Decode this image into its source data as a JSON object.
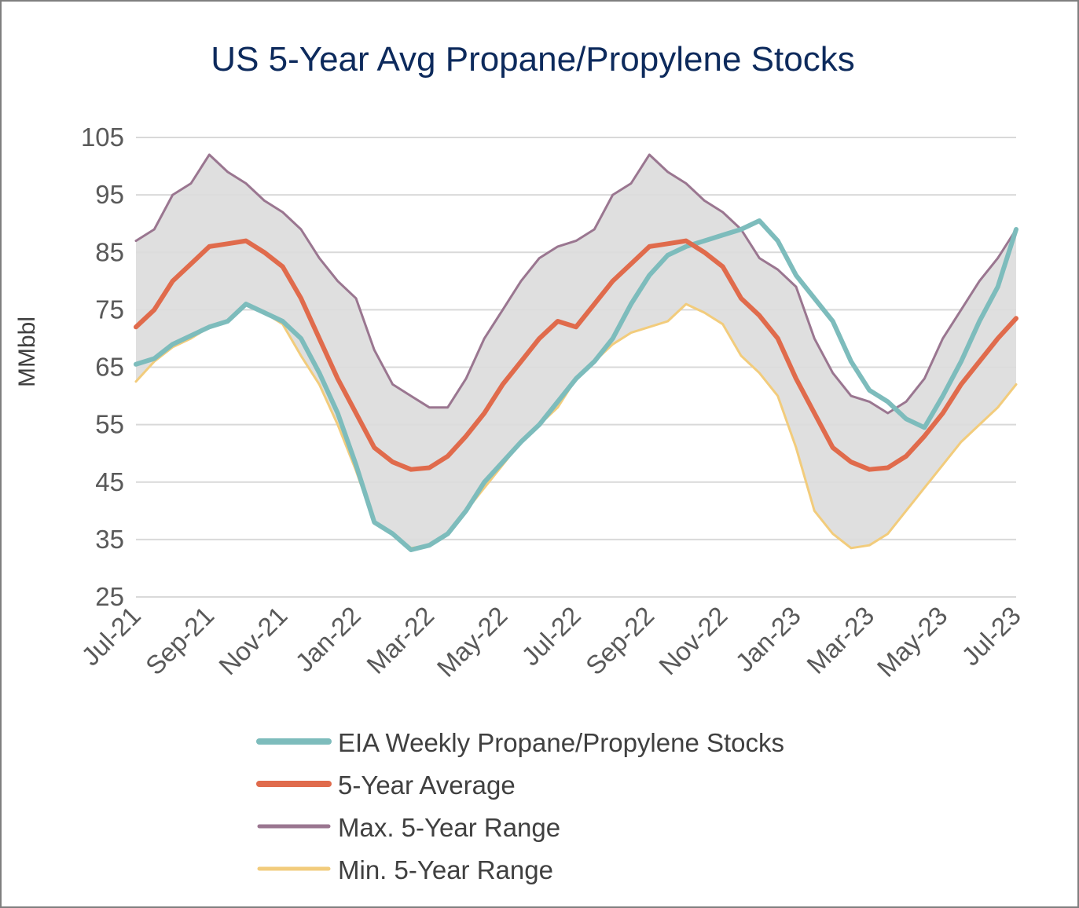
{
  "chart_data": {
    "type": "line",
    "title": "US 5-Year Avg Propane/Propylene Stocks",
    "xlabel": "",
    "ylabel": "MMbbl",
    "ylim": [
      25,
      105
    ],
    "yticks": [
      25,
      35,
      45,
      55,
      65,
      75,
      85,
      95,
      105
    ],
    "xlim": [
      0,
      24
    ],
    "xticks": [
      {
        "label": "Jul-21",
        "month": 0
      },
      {
        "label": "Sep-21",
        "month": 2
      },
      {
        "label": "Nov-21",
        "month": 4
      },
      {
        "label": "Jan-22",
        "month": 6
      },
      {
        "label": "Mar-22",
        "month": 8
      },
      {
        "label": "May-22",
        "month": 10
      },
      {
        "label": "Jul-22",
        "month": 12
      },
      {
        "label": "Sep-22",
        "month": 14
      },
      {
        "label": "Nov-22",
        "month": 16
      },
      {
        "label": "Jan-23",
        "month": 18
      },
      {
        "label": "Mar-23",
        "month": 20
      },
      {
        "label": "May-23",
        "month": 22
      },
      {
        "label": "Jul-23",
        "month": 24
      }
    ],
    "grid": true,
    "legend_position": "bottom",
    "series": [
      {
        "name": "EIA Weekly Propane/Propylene Stocks",
        "color": "#7dbcbc",
        "width": 6,
        "points": [
          [
            0,
            65.5
          ],
          [
            0.5,
            66.5
          ],
          [
            1,
            69
          ],
          [
            1.5,
            70.5
          ],
          [
            2,
            72
          ],
          [
            2.5,
            73
          ],
          [
            3,
            76
          ],
          [
            3.5,
            74.5
          ],
          [
            4,
            73
          ],
          [
            4.5,
            70
          ],
          [
            5,
            64
          ],
          [
            5.5,
            57
          ],
          [
            6,
            48
          ],
          [
            6.5,
            38
          ],
          [
            7,
            36
          ],
          [
            7.5,
            33.2
          ],
          [
            8,
            34
          ],
          [
            8.5,
            36
          ],
          [
            9,
            40
          ],
          [
            9.5,
            45
          ],
          [
            10,
            48.5
          ],
          [
            10.5,
            52
          ],
          [
            11,
            55
          ],
          [
            11.5,
            59
          ],
          [
            12,
            63
          ],
          [
            12.5,
            66
          ],
          [
            13,
            70
          ],
          [
            13.5,
            76
          ],
          [
            14,
            81
          ],
          [
            14.5,
            84.5
          ],
          [
            15,
            86
          ],
          [
            15.5,
            87
          ],
          [
            16,
            88
          ],
          [
            16.5,
            89
          ],
          [
            17,
            90.5
          ],
          [
            17.5,
            87
          ],
          [
            18,
            81
          ],
          [
            18.5,
            77
          ],
          [
            19,
            73
          ],
          [
            19.5,
            66
          ],
          [
            20,
            61
          ],
          [
            20.5,
            59
          ],
          [
            21,
            56
          ],
          [
            21.5,
            54.5
          ],
          [
            22,
            60
          ],
          [
            22.5,
            66
          ],
          [
            23,
            73
          ],
          [
            23.5,
            79
          ],
          [
            24,
            89
          ]
        ]
      },
      {
        "name": "5-Year Average",
        "color": "#e06b4c",
        "width": 6,
        "points": [
          [
            0,
            72
          ],
          [
            0.5,
            75
          ],
          [
            1,
            80
          ],
          [
            1.5,
            83
          ],
          [
            2,
            86
          ],
          [
            2.5,
            86.5
          ],
          [
            3,
            87
          ],
          [
            3.5,
            85
          ],
          [
            4,
            82.5
          ],
          [
            4.5,
            77
          ],
          [
            5,
            70
          ],
          [
            5.5,
            63
          ],
          [
            6,
            57
          ],
          [
            6.5,
            51
          ],
          [
            7,
            48.5
          ],
          [
            7.5,
            47.2
          ],
          [
            8,
            47.5
          ],
          [
            8.5,
            49.5
          ],
          [
            9,
            53
          ],
          [
            9.5,
            57
          ],
          [
            10,
            62
          ],
          [
            10.5,
            66
          ],
          [
            11,
            70
          ],
          [
            11.5,
            73
          ],
          [
            12,
            72
          ],
          [
            12.5,
            76
          ],
          [
            13,
            80
          ],
          [
            13.5,
            83
          ],
          [
            14,
            86
          ],
          [
            14.5,
            86.5
          ],
          [
            15,
            87
          ],
          [
            15.5,
            85
          ],
          [
            16,
            82.5
          ],
          [
            16.5,
            77
          ],
          [
            17,
            74
          ],
          [
            17.5,
            70
          ],
          [
            18,
            63
          ],
          [
            18.5,
            57
          ],
          [
            19,
            51
          ],
          [
            19.5,
            48.5
          ],
          [
            20,
            47.2
          ],
          [
            20.5,
            47.5
          ],
          [
            21,
            49.5
          ],
          [
            21.5,
            53
          ],
          [
            22,
            57
          ],
          [
            22.5,
            62
          ],
          [
            23,
            66
          ],
          [
            23.5,
            70
          ],
          [
            24,
            73.5
          ]
        ]
      },
      {
        "name": "Max. 5-Year Range",
        "color": "#9a7690",
        "width": 3,
        "points": [
          [
            0,
            87
          ],
          [
            0.5,
            89
          ],
          [
            1,
            95
          ],
          [
            1.5,
            97
          ],
          [
            2,
            102
          ],
          [
            2.5,
            99
          ],
          [
            3,
            97
          ],
          [
            3.5,
            94
          ],
          [
            4,
            92
          ],
          [
            4.5,
            89
          ],
          [
            5,
            84
          ],
          [
            5.5,
            80
          ],
          [
            6,
            77
          ],
          [
            6.5,
            68
          ],
          [
            7,
            62
          ],
          [
            7.5,
            60
          ],
          [
            8,
            58
          ],
          [
            8.5,
            58
          ],
          [
            9,
            63
          ],
          [
            9.5,
            70
          ],
          [
            10,
            75
          ],
          [
            10.5,
            80
          ],
          [
            11,
            84
          ],
          [
            11.5,
            86
          ],
          [
            12,
            87
          ],
          [
            12.5,
            89
          ],
          [
            13,
            95
          ],
          [
            13.5,
            97
          ],
          [
            14,
            102
          ],
          [
            14.5,
            99
          ],
          [
            15,
            97
          ],
          [
            15.5,
            94
          ],
          [
            16,
            92
          ],
          [
            16.5,
            89
          ],
          [
            17,
            84
          ],
          [
            17.5,
            82
          ],
          [
            18,
            79
          ],
          [
            18.5,
            70
          ],
          [
            19,
            64
          ],
          [
            19.5,
            60
          ],
          [
            20,
            59
          ],
          [
            20.5,
            57
          ],
          [
            21,
            59
          ],
          [
            21.5,
            63
          ],
          [
            22,
            70
          ],
          [
            22.5,
            75
          ],
          [
            23,
            80
          ],
          [
            23.5,
            84
          ],
          [
            24,
            89
          ]
        ]
      },
      {
        "name": "Min. 5-Year Range",
        "color": "#f2cc7c",
        "width": 3,
        "points": [
          [
            0,
            62.5
          ],
          [
            0.5,
            66
          ],
          [
            1,
            68.5
          ],
          [
            1.5,
            70
          ],
          [
            2,
            72
          ],
          [
            2.5,
            73
          ],
          [
            3,
            76
          ],
          [
            3.5,
            74.5
          ],
          [
            4,
            72.5
          ],
          [
            4.5,
            67
          ],
          [
            5,
            62
          ],
          [
            5.5,
            55
          ],
          [
            6,
            47
          ],
          [
            6.5,
            38
          ],
          [
            7,
            36
          ],
          [
            7.5,
            33.5
          ],
          [
            8,
            34
          ],
          [
            8.5,
            36
          ],
          [
            9,
            40
          ],
          [
            9.5,
            44
          ],
          [
            10,
            48
          ],
          [
            10.5,
            52
          ],
          [
            11,
            55
          ],
          [
            11.5,
            58
          ],
          [
            12,
            63
          ],
          [
            12.5,
            66
          ],
          [
            13,
            69
          ],
          [
            13.5,
            71
          ],
          [
            14,
            72
          ],
          [
            14.5,
            73
          ],
          [
            15,
            76
          ],
          [
            15.5,
            74.5
          ],
          [
            16,
            72.5
          ],
          [
            16.5,
            67
          ],
          [
            17,
            64
          ],
          [
            17.5,
            60
          ],
          [
            18,
            51
          ],
          [
            18.5,
            40
          ],
          [
            19,
            36
          ],
          [
            19.5,
            33.5
          ],
          [
            20,
            34
          ],
          [
            20.5,
            36
          ],
          [
            21,
            40
          ],
          [
            21.5,
            44
          ],
          [
            22,
            48
          ],
          [
            22.5,
            52
          ],
          [
            23,
            55
          ],
          [
            23.5,
            58
          ],
          [
            24,
            62
          ]
        ]
      }
    ]
  }
}
